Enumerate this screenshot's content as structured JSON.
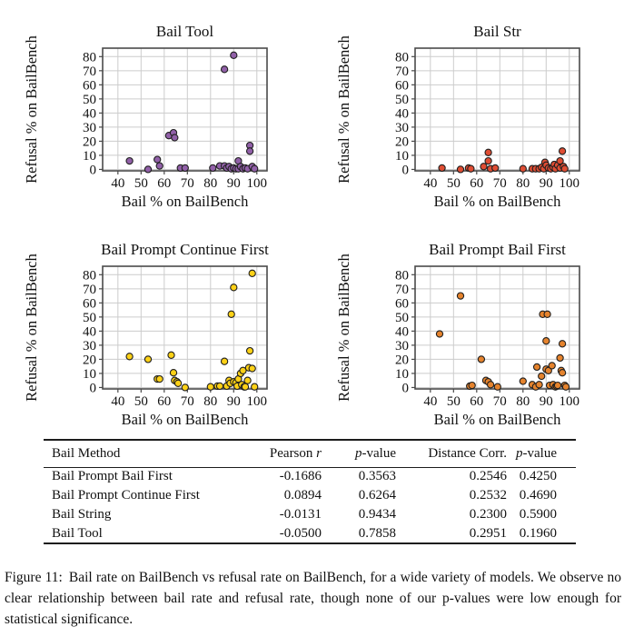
{
  "chart_data": [
    {
      "type": "scatter",
      "title": "Bail Tool",
      "xlabel": "Bail % on BailBench",
      "ylabel": "Refusal % on BailBench",
      "xlim": [
        33.4,
        104.4
      ],
      "ylim": [
        -1,
        86
      ],
      "xticks": [
        40,
        50,
        60,
        70,
        80,
        90,
        100
      ],
      "yticks": [
        0,
        10,
        20,
        30,
        40,
        50,
        60,
        70,
        80
      ],
      "grid": true,
      "marker_color": "#9160a8",
      "marker_edge": "#1f1f1f",
      "points": [
        [
          45,
          6
        ],
        [
          53,
          0
        ],
        [
          57,
          7
        ],
        [
          58,
          2.5
        ],
        [
          62,
          24
        ],
        [
          64,
          26
        ],
        [
          64.5,
          22.5
        ],
        [
          67,
          1
        ],
        [
          69,
          1
        ],
        [
          81,
          1
        ],
        [
          84,
          2.5
        ],
        [
          86,
          71
        ],
        [
          86,
          2.5
        ],
        [
          87,
          1
        ],
        [
          88,
          2
        ],
        [
          89,
          0.5
        ],
        [
          90,
          81
        ],
        [
          90,
          1
        ],
        [
          91,
          0.5
        ],
        [
          92,
          6
        ],
        [
          92,
          0.5
        ],
        [
          93,
          2
        ],
        [
          94,
          0.5
        ],
        [
          95,
          1
        ],
        [
          96,
          0.5
        ],
        [
          97,
          17
        ],
        [
          97,
          13
        ],
        [
          98,
          2
        ],
        [
          99,
          0.5
        ]
      ]
    },
    {
      "type": "scatter",
      "title": "Bail Str",
      "xlabel": "Bail % on BailBench",
      "ylabel": "Refusal % on BailBench",
      "xlim": [
        33.4,
        104.4
      ],
      "ylim": [
        -1,
        86
      ],
      "xticks": [
        40,
        50,
        60,
        70,
        80,
        90,
        100
      ],
      "yticks": [
        0,
        10,
        20,
        30,
        40,
        50,
        60,
        70,
        80
      ],
      "grid": true,
      "marker_color": "#df4d33",
      "marker_edge": "#1f1f1f",
      "points": [
        [
          45,
          1
        ],
        [
          53,
          0
        ],
        [
          56.5,
          1
        ],
        [
          57.5,
          0.5
        ],
        [
          63,
          2
        ],
        [
          65,
          12
        ],
        [
          65,
          6
        ],
        [
          66,
          0.5
        ],
        [
          68,
          1
        ],
        [
          80,
          0.5
        ],
        [
          84,
          0.5
        ],
        [
          85.5,
          0.5
        ],
        [
          87,
          0.5
        ],
        [
          88,
          1.5
        ],
        [
          89,
          0.5
        ],
        [
          89.5,
          5
        ],
        [
          90,
          3
        ],
        [
          91,
          1
        ],
        [
          92,
          0.5
        ],
        [
          93,
          1.5
        ],
        [
          93.5,
          3.5
        ],
        [
          94,
          0.5
        ],
        [
          95,
          3
        ],
        [
          96,
          6
        ],
        [
          96,
          1
        ],
        [
          97,
          13
        ],
        [
          97.5,
          2
        ],
        [
          98,
          0.5
        ]
      ]
    },
    {
      "type": "scatter",
      "title": "Bail Prompt Continue First",
      "xlabel": "Bail % on BailBench",
      "ylabel": "Refusal % on BailBench",
      "xlim": [
        33.4,
        104.4
      ],
      "ylim": [
        -1,
        86
      ],
      "xticks": [
        40,
        50,
        60,
        70,
        80,
        90,
        100
      ],
      "yticks": [
        0,
        10,
        20,
        30,
        40,
        50,
        60,
        70,
        80
      ],
      "grid": true,
      "marker_color": "#fdd116",
      "marker_edge": "#1f1f1f",
      "points": [
        [
          45,
          22
        ],
        [
          53,
          20
        ],
        [
          57,
          6
        ],
        [
          58,
          6
        ],
        [
          63,
          23
        ],
        [
          64,
          10.5
        ],
        [
          64.5,
          5
        ],
        [
          65.5,
          4
        ],
        [
          66,
          3
        ],
        [
          69,
          0
        ],
        [
          80,
          0.5
        ],
        [
          83,
          1
        ],
        [
          84,
          1
        ],
        [
          86,
          18.5
        ],
        [
          87,
          1
        ],
        [
          88,
          5
        ],
        [
          88.5,
          3
        ],
        [
          89,
          52
        ],
        [
          90,
          71
        ],
        [
          90,
          4
        ],
        [
          91,
          3.5
        ],
        [
          91.5,
          1
        ],
        [
          92,
          6
        ],
        [
          93,
          10
        ],
        [
          93.5,
          2
        ],
        [
          94,
          12
        ],
        [
          94.5,
          0.5
        ],
        [
          95,
          0.5
        ],
        [
          96,
          5
        ],
        [
          96.5,
          14
        ],
        [
          97,
          26
        ],
        [
          98,
          81
        ],
        [
          98,
          13.5
        ],
        [
          99,
          0.5
        ]
      ]
    },
    {
      "type": "scatter",
      "title": "Bail Prompt Bail First",
      "xlabel": "Bail % on BailBench",
      "ylabel": "Refusal % on BailBench",
      "xlim": [
        33.4,
        104.4
      ],
      "ylim": [
        -1,
        86
      ],
      "xticks": [
        40,
        50,
        60,
        70,
        80,
        90,
        100
      ],
      "yticks": [
        0,
        10,
        20,
        30,
        40,
        50,
        60,
        70,
        80
      ],
      "grid": true,
      "marker_color": "#e5832d",
      "marker_edge": "#1f1f1f",
      "points": [
        [
          44,
          38
        ],
        [
          53,
          65
        ],
        [
          57,
          1
        ],
        [
          58,
          1.5
        ],
        [
          62,
          20
        ],
        [
          64,
          5
        ],
        [
          65,
          4
        ],
        [
          66,
          2
        ],
        [
          69,
          0.5
        ],
        [
          80,
          4.5
        ],
        [
          84,
          2
        ],
        [
          85.5,
          0.5
        ],
        [
          86,
          14.5
        ],
        [
          87,
          2
        ],
        [
          88,
          8
        ],
        [
          88.5,
          52
        ],
        [
          90.5,
          52
        ],
        [
          90,
          33
        ],
        [
          90,
          13
        ],
        [
          91,
          12
        ],
        [
          91.5,
          1.5
        ],
        [
          92.5,
          15.5
        ],
        [
          93,
          2
        ],
        [
          94,
          0.5
        ],
        [
          94.5,
          1
        ],
        [
          95,
          1.5
        ],
        [
          96,
          21
        ],
        [
          96.5,
          12
        ],
        [
          97,
          31
        ],
        [
          97,
          10.5
        ],
        [
          98,
          1.5
        ],
        [
          98.5,
          0.5
        ]
      ]
    }
  ],
  "table": {
    "headers": [
      {
        "pre": "Bail Method",
        "it": "",
        "post": ""
      },
      {
        "pre": "Pearson ",
        "it": "r",
        "post": ""
      },
      {
        "pre": "",
        "it": "p",
        "post": "-value"
      },
      {
        "pre": "Distance Corr.",
        "it": "",
        "post": ""
      },
      {
        "pre": "",
        "it": "p",
        "post": "-value"
      }
    ],
    "rows": [
      {
        "cells": [
          "Bail Prompt Bail First",
          "-0.1686",
          "0.3563",
          "0.2546",
          "0.4250"
        ]
      },
      {
        "cells": [
          "Bail Prompt Continue First",
          "0.0894",
          "0.6264",
          "0.2532",
          "0.4690"
        ]
      },
      {
        "cells": [
          "Bail String",
          "-0.0131",
          "0.9434",
          "0.2300",
          "0.5900"
        ]
      },
      {
        "cells": [
          "Bail Tool",
          "-0.0500",
          "0.7858",
          "0.2951",
          "0.1960"
        ]
      }
    ]
  },
  "caption": {
    "tag": "Figure 11:",
    "text": "Bail rate on BailBench vs refusal rate on BailBench, for a wide variety of models. We observe no clear relationship between bail rate and refusal rate, though none of our p-values were low enough for statistical significance."
  },
  "colors": {
    "grid": "#cccccc",
    "frame": "#4a4a4a",
    "text": "#111111"
  }
}
